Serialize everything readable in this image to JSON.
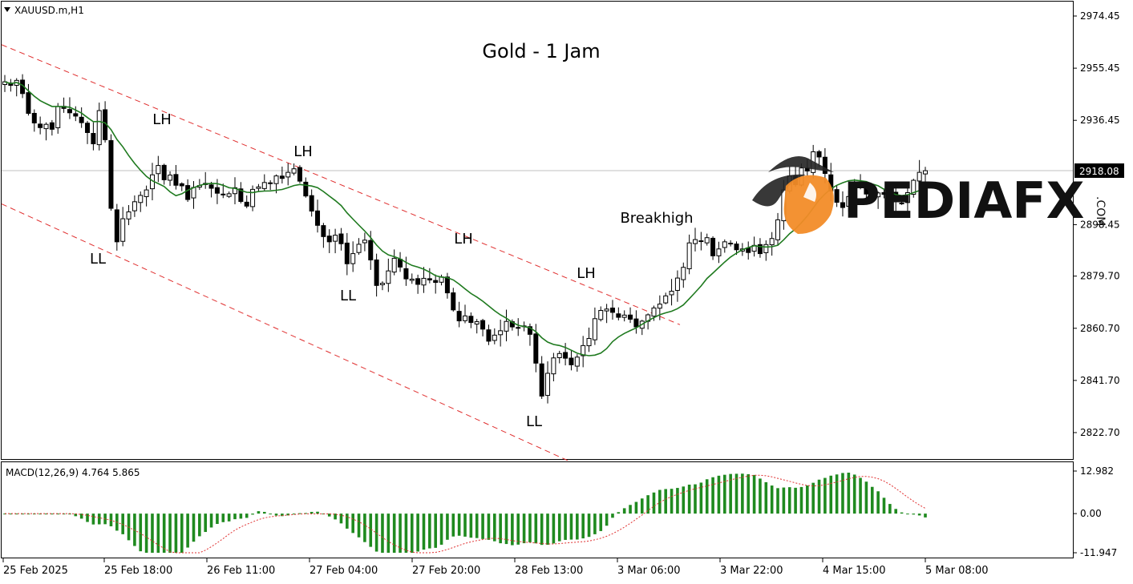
{
  "chart_data": [
    {
      "type": "candlestick",
      "symbol_label": "XAUUSD.m,H1",
      "title": "Gold - 1 Jam",
      "current_price_label": "2918.08",
      "current_price": 2918.08,
      "y_ticks": [
        "2974.45",
        "2955.45",
        "2936.45",
        "2918.08",
        "2898.45",
        "2879.70",
        "2860.70",
        "2841.70",
        "2822.70"
      ],
      "ylim": [
        2812,
        2978
      ],
      "x_ticks": [
        "25 Feb 2025",
        "25 Feb 18:00",
        "26 Feb 11:00",
        "27 Feb 04:00",
        "27 Feb 20:00",
        "28 Feb 13:00",
        "3 Mar 06:00",
        "3 Mar 22:00",
        "4 Mar 15:00",
        "5 Mar 08:00"
      ],
      "annotations": [
        {
          "text": "LH",
          "date_index": 1,
          "price": 2944
        },
        {
          "text": "LL",
          "date_index": 1,
          "price": 2883
        },
        {
          "text": "LH",
          "date_index": 3,
          "price": 2931
        },
        {
          "text": "LH",
          "date_index": 4,
          "price": 2898
        },
        {
          "text": "LL",
          "date_index": 3,
          "price": 2876
        },
        {
          "text": "LH",
          "date_index": 5,
          "price": 2885
        },
        {
          "text": "LL",
          "date_index": 5,
          "price": 2836
        },
        {
          "text": "Breakhigh",
          "date_index": 6,
          "price": 2905
        }
      ],
      "channel_lines": "red dashed descending channel; green moving average",
      "closes": [
        2950.5,
        2949.2,
        2951.0,
        2946.2,
        2939.0,
        2935.5,
        2933.8,
        2935.0,
        2933.2,
        2941.5,
        2940.8,
        2939.2,
        2938.0,
        2935.6,
        2932.0,
        2927.9,
        2940.0,
        2929.4,
        2904.4,
        2892.2,
        2900.6,
        2903.1,
        2906.8,
        2909.1,
        2911.1,
        2916.6,
        2920.0,
        2914.8,
        2916.5,
        2912.8,
        2912.6,
        2907.6,
        2912.0,
        2912.7,
        2913.5,
        2911.7,
        2909.9,
        2909.3,
        2909.7,
        2911.9,
        2906.9,
        2905.2,
        2911.3,
        2912.2,
        2913.8,
        2913.5,
        2916.2,
        2915.3,
        2917.5,
        2918.8,
        2914.3,
        2908.9,
        2903.4,
        2898.2,
        2894.1,
        2892.2,
        2894.6,
        2891.5,
        2884.2,
        2887.9,
        2891.3,
        2892.8,
        2885.6,
        2876.3,
        2877.1,
        2881.6,
        2886.2,
        2883.0,
        2878.7,
        2878.6,
        2876.7,
        2878.9,
        2878.3,
        2877.4,
        2879.4,
        2873.6,
        2867.4,
        2863.4,
        2865.2,
        2862.8,
        2863.1,
        2860.4,
        2856.0,
        2858.2,
        2859.8,
        2863.2,
        2861.2,
        2861.0,
        2861.5,
        2858.5,
        2848.0,
        2836.0,
        2844.3,
        2849.9,
        2851.5,
        2849.8,
        2847.4,
        2850.2,
        2854.4,
        2857.0,
        2864.2,
        2867.2,
        2867.7,
        2866.5,
        2864.7,
        2865.5,
        2864.0,
        2861.2,
        2863.3,
        2865.6,
        2868.1,
        2869.5,
        2872.5,
        2874.2,
        2879.0,
        2882.9,
        2891.8,
        2893.0,
        2892.4,
        2893.7,
        2887.1,
        2889.6,
        2892.2,
        2891.6,
        2889.3,
        2889.6,
        2888.3,
        2890.9,
        2887.9,
        2891.2,
        2893.4,
        2900.2,
        2911.1,
        2916.2,
        2913.0,
        2919.1,
        2918.0,
        2925.0,
        2923.1,
        2917.1,
        2910.7,
        2906.6,
        2904.7,
        2908.7,
        2913.9,
        2913.2,
        2909.6,
        2908.9,
        2910.0,
        2909.5,
        2910.1,
        2906.8,
        2906.2,
        2910.1,
        2914.6,
        2917.5,
        2918.1
      ]
    },
    {
      "type": "bar",
      "title": "MACD(12,26,9) 4.764 5.865",
      "y_ticks": [
        "12.982",
        "0.00",
        "-11.947"
      ],
      "ylim": [
        -11.947,
        12.982
      ],
      "series": [
        {
          "name": "MACD"
        },
        {
          "name": "Signal"
        }
      ]
    }
  ]
}
